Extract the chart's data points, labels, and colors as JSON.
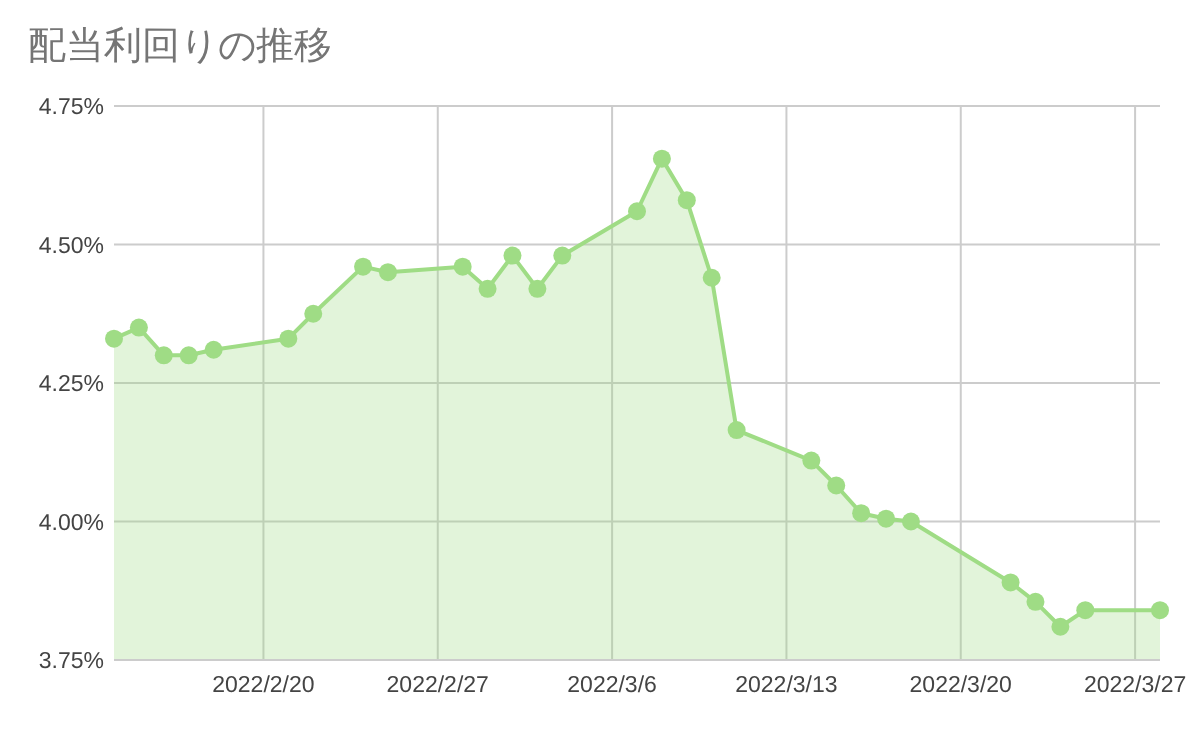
{
  "chart_data": {
    "type": "area",
    "title": "配当利回りの推移",
    "x": [
      "2022-02-14",
      "2022-02-15",
      "2022-02-16",
      "2022-02-17",
      "2022-02-18",
      "2022-02-21",
      "2022-02-22",
      "2022-02-24",
      "2022-02-25",
      "2022-02-28",
      "2022-03-01",
      "2022-03-02",
      "2022-03-03",
      "2022-03-04",
      "2022-03-07",
      "2022-03-08",
      "2022-03-09",
      "2022-03-10",
      "2022-03-11",
      "2022-03-14",
      "2022-03-15",
      "2022-03-16",
      "2022-03-17",
      "2022-03-18",
      "2022-03-22",
      "2022-03-23",
      "2022-03-24",
      "2022-03-25",
      "2022-03-28"
    ],
    "values": [
      4.33,
      4.35,
      4.3,
      4.3,
      4.31,
      4.33,
      4.375,
      4.46,
      4.45,
      4.46,
      4.42,
      4.48,
      4.42,
      4.48,
      4.56,
      4.655,
      4.58,
      4.44,
      4.165,
      4.11,
      4.065,
      4.015,
      4.005,
      4.0,
      3.89,
      3.855,
      3.81,
      3.84,
      3.84
    ],
    "color": "#9fdc85",
    "xlim": [
      "2022-02-14",
      "2022-03-28"
    ],
    "ylim": [
      3.75,
      4.75
    ],
    "xticks": [
      {
        "value": "2022-02-20",
        "label": "2022/2/20"
      },
      {
        "value": "2022-02-27",
        "label": "2022/2/27"
      },
      {
        "value": "2022-03-06",
        "label": "2022/3/6"
      },
      {
        "value": "2022-03-13",
        "label": "2022/3/13"
      },
      {
        "value": "2022-03-20",
        "label": "2022/3/20"
      },
      {
        "value": "2022-03-27",
        "label": "2022/3/27"
      }
    ],
    "yticks": [
      {
        "value": 3.75,
        "label": "3.75%"
      },
      {
        "value": 4.0,
        "label": "4.00%"
      },
      {
        "value": 4.25,
        "label": "4.25%"
      },
      {
        "value": 4.5,
        "label": "4.50%"
      },
      {
        "value": 4.75,
        "label": "4.75%"
      }
    ],
    "grid": true,
    "marker": "circle"
  }
}
